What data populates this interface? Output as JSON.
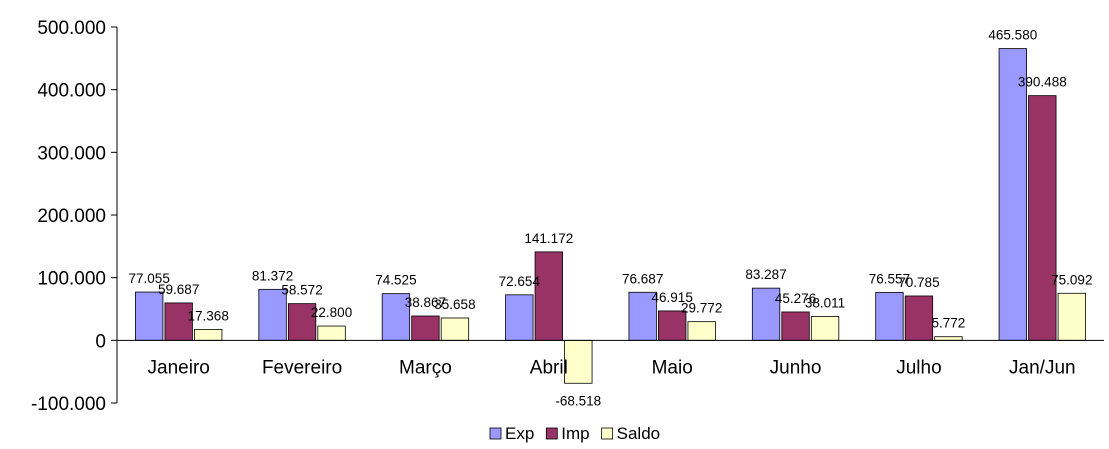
{
  "chart_data": {
    "type": "bar",
    "title": "",
    "xlabel": "",
    "ylabel": "",
    "ylim": [
      -100000,
      500000
    ],
    "yticks": [
      500000,
      400000,
      300000,
      200000,
      100000,
      0,
      -100000
    ],
    "ytick_labels": [
      "500.000",
      "400.000",
      "300.000",
      "200.000",
      "100.000",
      "0",
      "-100.000"
    ],
    "grid": false,
    "legend_position": "bottom",
    "categories": [
      "Janeiro",
      "Fevereiro",
      "Março",
      "Abril",
      "Maio",
      "Junho",
      "Julho",
      "Jan/Jun"
    ],
    "series": [
      {
        "name": "Exp",
        "color": "#9999ff",
        "values": [
          77055,
          81372,
          74525,
          72654,
          76687,
          83287,
          76557,
          465580
        ],
        "labels": [
          "77.055",
          "81.372",
          "74.525",
          "72.654",
          "76.687",
          "83.287",
          "76.557",
          "465.580"
        ]
      },
      {
        "name": "Imp",
        "color": "#993366",
        "values": [
          59687,
          58572,
          38867,
          141172,
          46915,
          45276,
          70785,
          390488
        ],
        "labels": [
          "59.687",
          "58.572",
          "38.867",
          "141.172",
          "46.915",
          "45.276",
          "70.785",
          "390.488"
        ]
      },
      {
        "name": "Saldo",
        "color": "#ffffcc",
        "values": [
          17368,
          22800,
          35658,
          -68518,
          29772,
          38011,
          5772,
          75092
        ],
        "labels": [
          "17.368",
          "22.800",
          "35.658",
          "-68.518",
          "29.772",
          "38.011",
          "5.772",
          "75.092"
        ]
      }
    ]
  }
}
